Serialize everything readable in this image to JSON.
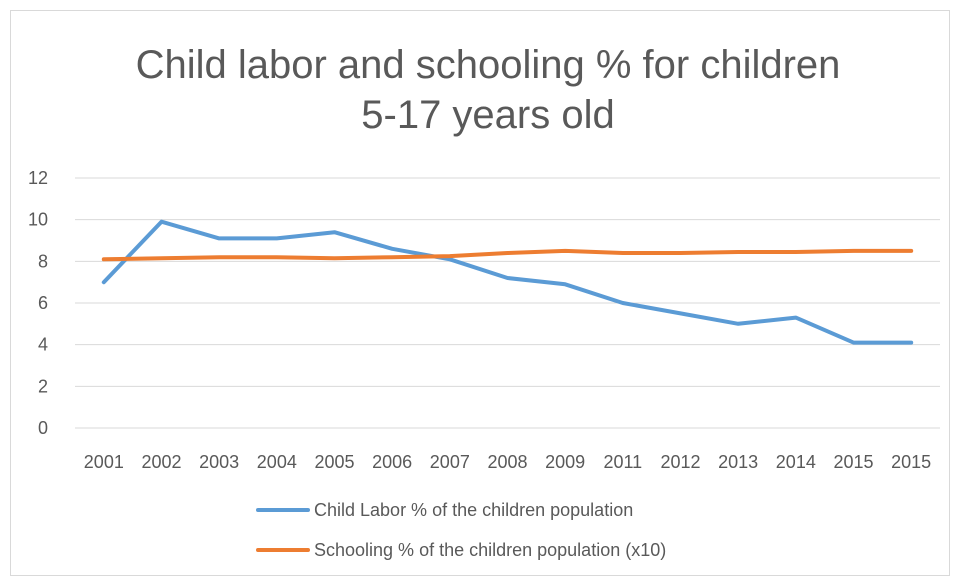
{
  "chart_data": {
    "type": "line",
    "title": [
      "Child labor and schooling % for children",
      "5-17 years old"
    ],
    "xlabel": "",
    "ylabel": "",
    "categories": [
      "2001",
      "2002",
      "2003",
      "2004",
      "2005",
      "2006",
      "2007",
      "2008",
      "2009",
      "2011",
      "2012",
      "2013",
      "2014",
      "2015",
      "2015"
    ],
    "ylim": [
      0,
      12
    ],
    "yticks": [
      0,
      2,
      4,
      6,
      8,
      10,
      12
    ],
    "grid": true,
    "legend_position": "bottom",
    "series": [
      {
        "name": "Child Labor % of the children population",
        "color": "#5b9bd5",
        "values": [
          7.0,
          9.9,
          9.1,
          9.1,
          9.4,
          8.6,
          8.1,
          7.2,
          6.9,
          6.0,
          5.5,
          5.0,
          5.3,
          4.1,
          4.1
        ]
      },
      {
        "name": "Schooling % of the children population (x10)",
        "color": "#ed7d31",
        "values": [
          8.1,
          8.15,
          8.2,
          8.2,
          8.15,
          8.2,
          8.25,
          8.4,
          8.5,
          8.4,
          8.4,
          8.45,
          8.45,
          8.5,
          8.5
        ]
      }
    ]
  },
  "style": {
    "gridline_color": "#d9d9d9",
    "text_color": "#595959"
  }
}
